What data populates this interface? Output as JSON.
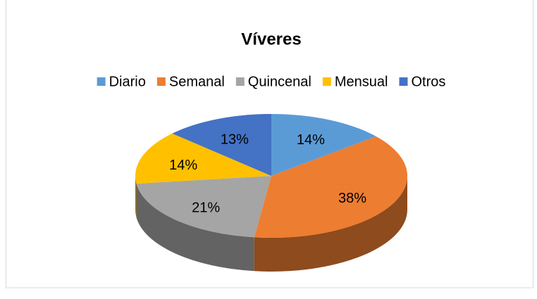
{
  "chart_data": {
    "type": "pie3d",
    "title": "Víveres",
    "categories": [
      "Diario",
      "Semanal",
      "Quincenal",
      "Mensual",
      "Otros"
    ],
    "values": [
      14,
      38,
      21,
      14,
      13
    ],
    "value_labels": [
      "14%",
      "38%",
      "21%",
      "14%",
      "13%"
    ],
    "colors": [
      "#5b9bd5",
      "#ed7d31",
      "#a5a5a5",
      "#ffc000",
      "#4472c4"
    ],
    "legend": "top"
  }
}
